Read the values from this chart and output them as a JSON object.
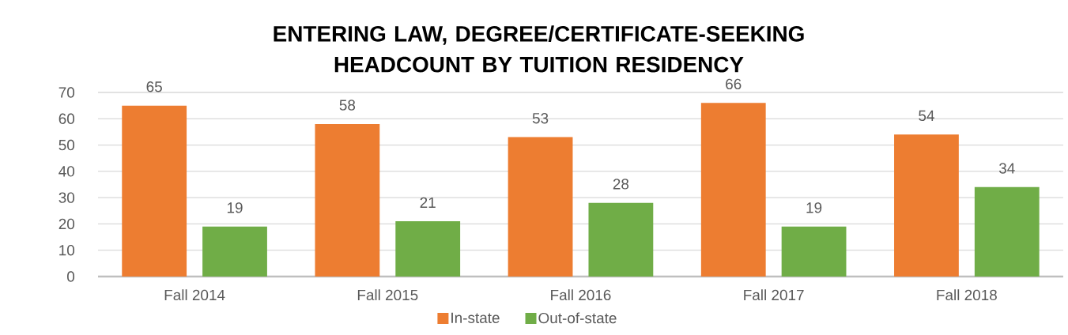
{
  "chart_data": {
    "type": "bar",
    "title": "ENTERING LAW, DEGREE/CERTIFICATE-SEEKING HEADCOUNT BY TUITION RESIDENCY",
    "categories": [
      "Fall 2014",
      "Fall 2015",
      "Fall 2016",
      "Fall 2017",
      "Fall 2018"
    ],
    "series": [
      {
        "name": "In-state",
        "color": "#ed7d31",
        "values": [
          65,
          58,
          53,
          66,
          54
        ]
      },
      {
        "name": "Out-of-state",
        "color": "#70ad47",
        "values": [
          19,
          21,
          28,
          19,
          34
        ]
      }
    ],
    "ylim": [
      0,
      70
    ],
    "yticks": [
      0,
      10,
      20,
      30,
      40,
      50,
      60,
      70
    ],
    "grid": "y",
    "legend": "bottom",
    "data_labels": true
  }
}
